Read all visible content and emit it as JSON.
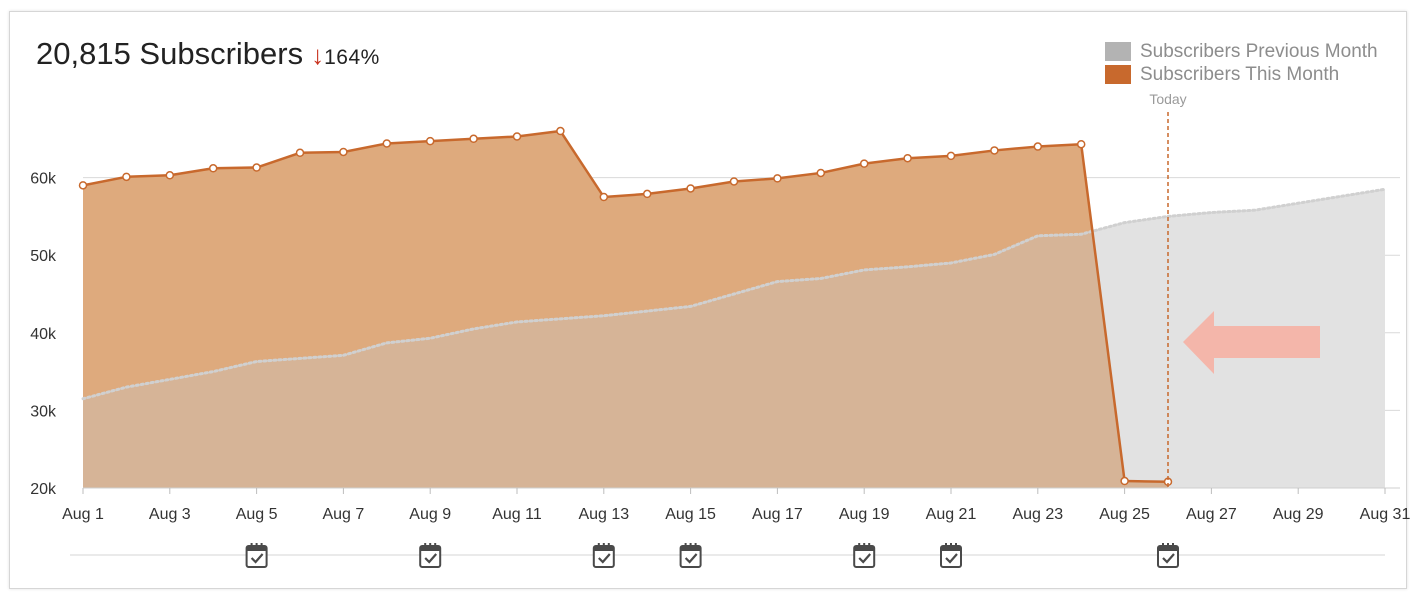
{
  "header": {
    "count_label": "20,815 Subscribers",
    "change_arrow": "↓",
    "change_pct": "164%"
  },
  "legend": [
    {
      "label": "Subscribers Previous Month",
      "color": "#b3b3b3"
    },
    {
      "label": "Subscribers This Month",
      "color": "#c8692d"
    }
  ],
  "today_label": "Today",
  "event_icon": "calendar-check-icon",
  "chart_data": {
    "type": "area",
    "x_domain": [
      1,
      31
    ],
    "ylim": [
      20000,
      70000
    ],
    "y_ticks": [
      {
        "value": 20000,
        "label": "20k"
      },
      {
        "value": 30000,
        "label": "30k"
      },
      {
        "value": 40000,
        "label": "40k"
      },
      {
        "value": 50000,
        "label": "50k"
      },
      {
        "value": 60000,
        "label": "60k"
      }
    ],
    "x_ticks": [
      {
        "value": 1,
        "label": "Aug 1"
      },
      {
        "value": 3,
        "label": "Aug 3"
      },
      {
        "value": 5,
        "label": "Aug 5"
      },
      {
        "value": 7,
        "label": "Aug 7"
      },
      {
        "value": 9,
        "label": "Aug 9"
      },
      {
        "value": 11,
        "label": "Aug 11"
      },
      {
        "value": 13,
        "label": "Aug 13"
      },
      {
        "value": 15,
        "label": "Aug 15"
      },
      {
        "value": 17,
        "label": "Aug 17"
      },
      {
        "value": 19,
        "label": "Aug 19"
      },
      {
        "value": 21,
        "label": "Aug 21"
      },
      {
        "value": 23,
        "label": "Aug 23"
      },
      {
        "value": 25,
        "label": "Aug 25"
      },
      {
        "value": 27,
        "label": "Aug 27"
      },
      {
        "value": 29,
        "label": "Aug 29"
      },
      {
        "value": 31,
        "label": "Aug 31"
      }
    ],
    "today_x": 26,
    "grid": true,
    "legend_position": "top-right",
    "series": [
      {
        "name": "Subscribers Previous Month",
        "style": "dotted",
        "x": [
          1,
          2,
          3,
          4,
          5,
          6,
          7,
          8,
          9,
          10,
          11,
          12,
          13,
          14,
          15,
          16,
          17,
          18,
          19,
          20,
          21,
          22,
          23,
          24,
          25,
          26,
          27,
          28,
          29,
          30,
          31
        ],
        "values": [
          31500,
          33000,
          34000,
          35000,
          36300,
          36700,
          37100,
          38700,
          39300,
          40500,
          41400,
          41800,
          42200,
          42800,
          43400,
          45000,
          46600,
          47000,
          48100,
          48500,
          49000,
          50100,
          52500,
          52700,
          54200,
          55000,
          55500,
          55800,
          56700,
          57600,
          58500
        ]
      },
      {
        "name": "Subscribers This Month",
        "style": "solid",
        "x": [
          1,
          2,
          3,
          4,
          5,
          6,
          7,
          8,
          9,
          10,
          11,
          12,
          13,
          14,
          15,
          16,
          17,
          18,
          19,
          20,
          21,
          22,
          23,
          24,
          25,
          26
        ],
        "values": [
          59000,
          60100,
          60300,
          61200,
          61300,
          63200,
          63300,
          64400,
          64700,
          65000,
          65300,
          66000,
          57500,
          57900,
          58600,
          59500,
          59900,
          60600,
          61800,
          62500,
          62800,
          63500,
          64000,
          64300,
          20900,
          20800
        ]
      }
    ],
    "event_days": [
      5,
      9,
      13,
      15,
      19,
      21,
      26
    ]
  }
}
